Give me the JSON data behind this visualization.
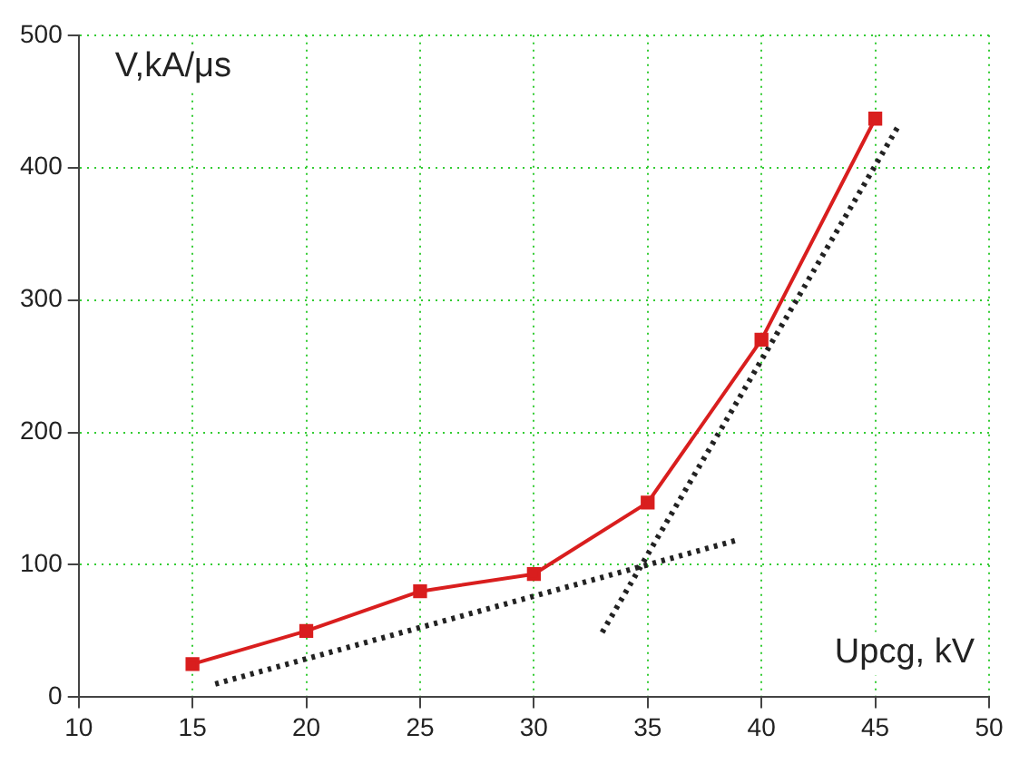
{
  "chart_data": {
    "type": "line",
    "xlabel": "Upcg, kV",
    "ylabel": "V,kA/μs",
    "xlim": [
      10,
      50
    ],
    "xticks": [
      10,
      15,
      20,
      25,
      30,
      35,
      40,
      45,
      50
    ],
    "ylim": [
      0,
      500
    ],
    "yticks": [
      0,
      100,
      200,
      300,
      400,
      500
    ],
    "grid": true,
    "legend": false,
    "series": [
      {
        "type": "line",
        "color": "#d91e1e",
        "x": [
          15,
          20,
          25,
          30,
          35,
          40,
          45
        ],
        "values": [
          25,
          50,
          80,
          93,
          147,
          270,
          437
        ],
        "marker": "square",
        "line_style": "solid"
      },
      {
        "type": "line",
        "color": "#222222",
        "x": [
          16,
          39
        ],
        "values": [
          10,
          119
        ],
        "marker": "none",
        "line_style": "dotted"
      },
      {
        "type": "line",
        "color": "#222222",
        "x": [
          33,
          46
        ],
        "values": [
          49,
          431
        ],
        "marker": "none",
        "line_style": "dotted"
      }
    ]
  }
}
